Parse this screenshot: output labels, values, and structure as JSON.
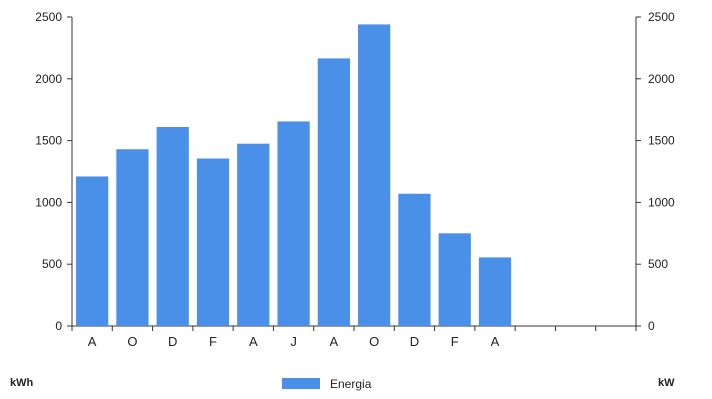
{
  "chart_data": {
    "type": "bar",
    "categories": [
      "A",
      "O",
      "D",
      "F",
      "A",
      "J",
      "A",
      "O",
      "D",
      "F",
      "A",
      "",
      "",
      ""
    ],
    "series": [
      {
        "name": "Energia",
        "color": "#4a8fe8",
        "values": [
          1210,
          1430,
          1610,
          1355,
          1475,
          1655,
          2165,
          2440,
          1070,
          750,
          555,
          null,
          null,
          null
        ]
      }
    ],
    "ylim": [
      0,
      2500
    ],
    "yticks": [
      0,
      500,
      1000,
      1500,
      2000,
      2500
    ],
    "y2lim": [
      0,
      2500
    ],
    "y2ticks": [
      0,
      500,
      1000,
      1500,
      2000,
      2500
    ],
    "y_unit_left": "kWh",
    "y_unit_right": "kW",
    "grid": false,
    "legend_position": "bottom-center"
  }
}
